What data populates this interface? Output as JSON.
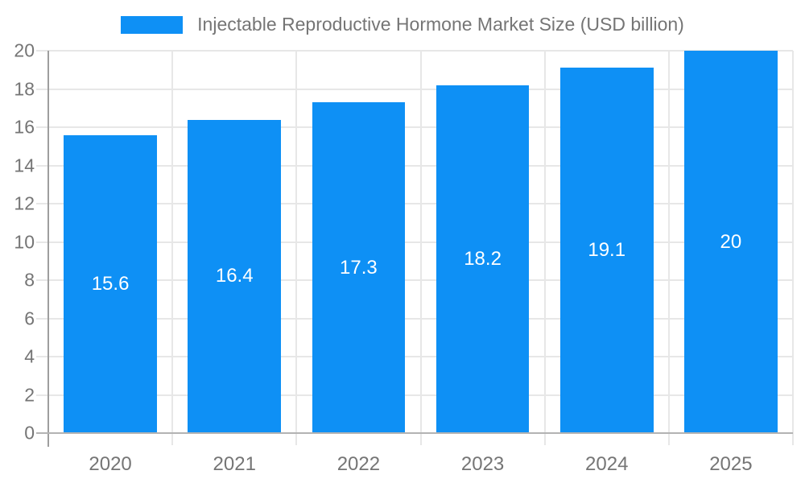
{
  "chart_data": {
    "type": "bar",
    "title": "Injectable Reproductive Hormone Market Size (USD billion)",
    "categories": [
      "2020",
      "2021",
      "2022",
      "2023",
      "2024",
      "2025"
    ],
    "series": [
      {
        "name": "Injectable Reproductive Hormone Market Size (USD billion)",
        "values": [
          15.6,
          16.4,
          17.3,
          18.2,
          19.1,
          20
        ]
      }
    ],
    "value_labels": [
      "15.6",
      "16.4",
      "17.3",
      "18.2",
      "19.1",
      "20"
    ],
    "xlabel": "",
    "ylabel": "",
    "ylim": [
      0,
      20
    ],
    "ytick_step": 2,
    "ytick_labels": [
      "0",
      "2",
      "4",
      "6",
      "8",
      "10",
      "12",
      "14",
      "16",
      "18",
      "20"
    ],
    "grid": true,
    "legend_position": "top-center",
    "colors": {
      "bar": "#0e90f5",
      "value_label": "#ffffff",
      "axis_text": "#757575",
      "gridline": "#e7e7e7",
      "baseline": "#b3b3b3",
      "axis_line": "#9e9e9e",
      "background": "#ffffff"
    }
  }
}
